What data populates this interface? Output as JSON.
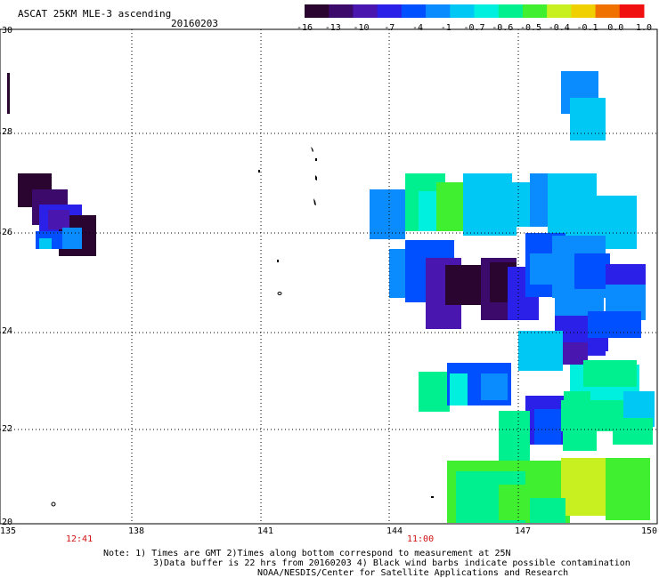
{
  "title": "ASCAT 25KM MLE-3 ascending",
  "date": "20160203",
  "colorbar": {
    "labels": [
      "-16",
      "-13",
      "-10",
      "-7",
      "-4",
      "-1",
      "-0.7",
      "-0.6",
      "-0.5",
      "-0.4",
      "-0.1",
      "0.0",
      "1.0"
    ],
    "colors": [
      "#2a0530",
      "#3c0a6a",
      "#4a16b0",
      "#2a20e8",
      "#0050ff",
      "#0a8cff",
      "#00c8f5",
      "#00f0e0",
      "#00f090",
      "#40f030",
      "#c8f020",
      "#f0d000",
      "#f07000",
      "#f01010"
    ]
  },
  "axes": {
    "lon_ticks": [
      "135",
      "138",
      "141",
      "144",
      "147",
      "150"
    ],
    "lat_ticks": [
      "30",
      "28",
      "26",
      "24",
      "22",
      "20"
    ]
  },
  "times": [
    "12:41",
    "11:00"
  ],
  "notes": [
    "Note: 1) Times are GMT 2)Times along bottom correspond to measurement at 25N",
    "3)Data buffer is 22 hrs from 20160203 4) Black wind barbs indicate possible contamination",
    "NOAA/NESDIS/Center for Satellite Applications and Research"
  ],
  "colors": {
    "background": "#ffffff",
    "grid": "#000000",
    "time_label": "#d01010"
  }
}
